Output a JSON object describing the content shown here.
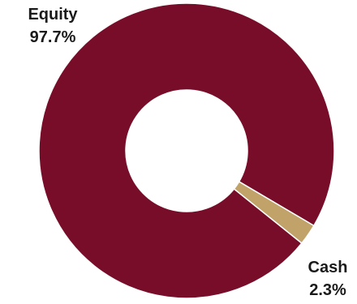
{
  "chart_data": {
    "type": "pie",
    "donut": true,
    "title": "",
    "categories": [
      "Equity",
      "Cash"
    ],
    "values": [
      97.7,
      2.3
    ],
    "value_labels": [
      "97.7%",
      "2.3%"
    ],
    "colors": [
      "#770D28",
      "#C1A36A"
    ],
    "legend": "none"
  }
}
